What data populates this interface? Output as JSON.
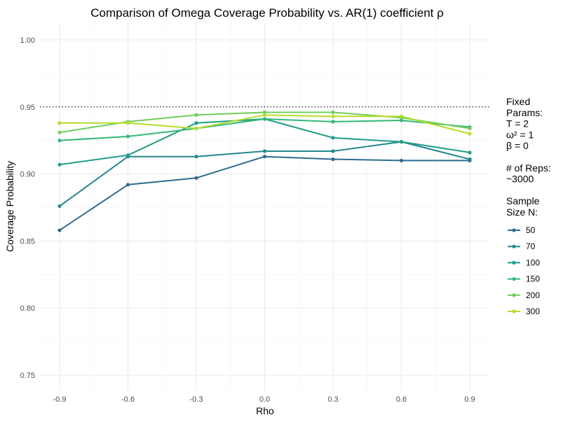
{
  "chart_data": {
    "type": "line",
    "title": "Comparison of Omega Coverage Probability vs. AR(1) coefficient ρ",
    "xlabel": "Rho",
    "ylabel": "Coverage Probability",
    "x": [
      -0.9,
      -0.6,
      -0.3,
      0.0,
      0.3,
      0.6,
      0.9
    ],
    "x_tick_labels": [
      "-0.9",
      "-0.6",
      "-0.3",
      "0.0",
      "0.3",
      "0.6",
      "0.9"
    ],
    "y_ticks": [
      0.75,
      0.8,
      0.85,
      0.9,
      0.95,
      1.0
    ],
    "y_tick_labels": [
      "0.75",
      "0.80",
      "0.85",
      "0.90",
      "0.95",
      "1.00"
    ],
    "xlim": [
      -0.9,
      0.9
    ],
    "ylim": [
      0.75,
      1.0
    ],
    "reference_line": {
      "y": 0.95,
      "style": "dotted"
    },
    "grid": true,
    "legend_position": "right",
    "legend_lines": [
      "Fixed",
      "Params:",
      "T = 2",
      "ω² = 1",
      "β = 0",
      "",
      "# of Reps:",
      "~3000",
      "",
      "Sample",
      "Size N:"
    ],
    "series": [
      {
        "name": "50",
        "color": "#2e6b8e",
        "values": [
          0.858,
          0.892,
          0.897,
          0.913,
          0.911,
          0.91,
          0.91
        ]
      },
      {
        "name": "70",
        "color": "#23878d",
        "values": [
          0.876,
          0.913,
          0.913,
          0.917,
          0.917,
          0.924,
          0.911
        ]
      },
      {
        "name": "100",
        "color": "#1f9e89",
        "values": [
          0.907,
          0.914,
          0.938,
          0.941,
          0.927,
          0.924,
          0.916
        ]
      },
      {
        "name": "150",
        "color": "#35b779",
        "values": [
          0.925,
          0.928,
          0.934,
          0.941,
          0.939,
          0.94,
          0.935
        ]
      },
      {
        "name": "200",
        "color": "#6ece58",
        "values": [
          0.931,
          0.939,
          0.944,
          0.946,
          0.946,
          0.942,
          0.934
        ]
      },
      {
        "name": "300",
        "color": "#b5de2b",
        "values": [
          0.938,
          0.938,
          0.934,
          0.944,
          0.943,
          0.943,
          0.93
        ]
      }
    ]
  }
}
